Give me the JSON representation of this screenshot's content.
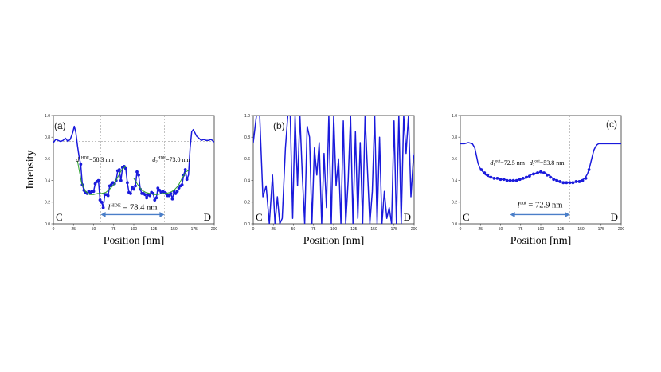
{
  "figure": {
    "ylabel": "Intensity",
    "xlabel": "Position [nm]",
    "panels": [
      {
        "id": "a",
        "label": "(a)",
        "left_label": "C",
        "right_label": "D",
        "annotations": {
          "d1": {
            "pre": "d",
            "sub": "1",
            "sup": "HDE",
            "post": "=58.3 nm"
          },
          "d2": {
            "pre": "d",
            "sub": "2",
            "sup": "HDE",
            "post": "=73.0 nm"
          },
          "l": {
            "pre": "l",
            "sup": "HDE",
            "post": " = 78.4 nm"
          }
        }
      },
      {
        "id": "b",
        "label": "(b)",
        "left_label": "C",
        "right_label": "D"
      },
      {
        "id": "c",
        "label": "(c)",
        "left_label": "C",
        "right_label": "D",
        "annotations": {
          "d1": {
            "pre": "d",
            "sub": "1",
            "sup": "out",
            "post": "=72.5 nm"
          },
          "d2": {
            "pre": "d",
            "sub": "2",
            "sup": "out",
            "post": "=53.8 nm"
          },
          "l": {
            "pre": "l",
            "sup": "out",
            "post": " = 72.9 nm"
          }
        }
      }
    ]
  },
  "chart_data": [
    {
      "type": "line",
      "panel": "(a)",
      "xlabel": "Position [nm]",
      "ylabel": "Intensity",
      "xlim": [
        0,
        200
      ],
      "ylim": [
        0.0,
        1.0
      ],
      "xticks": [
        "0",
        "25",
        "50",
        "75",
        "100",
        "125",
        "150",
        "175",
        "200"
      ],
      "yticks": [
        "0.0",
        "0.2",
        "0.4",
        "0.6",
        "0.8",
        "1.0"
      ],
      "vlines": [
        59,
        138
      ],
      "hline": 0.76,
      "arrow": [
        59,
        138
      ],
      "colors": {
        "line": "#1a1adc",
        "points": "#1a1adc",
        "fit": "#2ca02c",
        "guide": "#9a9a9a",
        "arrow": "#4a7ec8"
      },
      "series": [
        {
          "x": [
            0,
            3,
            6,
            9,
            12,
            15,
            18,
            21,
            24,
            26,
            28,
            30,
            32,
            34,
            36,
            38,
            40,
            42,
            44,
            46,
            48,
            50,
            52,
            54,
            56,
            58,
            60,
            62,
            64,
            66,
            68,
            70,
            72,
            74,
            76,
            78,
            80,
            82,
            84,
            86,
            88,
            90,
            92,
            94,
            96,
            98,
            100,
            102,
            104,
            106,
            108,
            110,
            112,
            114,
            116,
            118,
            120,
            122,
            124,
            126,
            128,
            130,
            132,
            134,
            136,
            138,
            140,
            142,
            144,
            146,
            148,
            150,
            152,
            154,
            156,
            158,
            160,
            162,
            164,
            166,
            168,
            170,
            172,
            174,
            176,
            178,
            181,
            184,
            187,
            190,
            193,
            196,
            199,
            202
          ],
          "y": [
            0.75,
            0.78,
            0.77,
            0.76,
            0.77,
            0.79,
            0.76,
            0.78,
            0.84,
            0.9,
            0.84,
            0.72,
            0.62,
            0.55,
            0.36,
            0.31,
            0.29,
            0.28,
            0.3,
            0.29,
            0.3,
            0.3,
            0.37,
            0.39,
            0.4,
            0.22,
            0.2,
            0.15,
            0.27,
            0.27,
            0.26,
            0.35,
            0.36,
            0.38,
            0.37,
            0.4,
            0.49,
            0.5,
            0.4,
            0.52,
            0.53,
            0.51,
            0.38,
            0.29,
            0.28,
            0.34,
            0.32,
            0.35,
            0.48,
            0.45,
            0.32,
            0.28,
            0.28,
            0.27,
            0.24,
            0.27,
            0.26,
            0.29,
            0.28,
            0.22,
            0.24,
            0.33,
            0.31,
            0.29,
            0.3,
            0.29,
            0.28,
            0.26,
            0.26,
            0.28,
            0.23,
            0.3,
            0.28,
            0.3,
            0.33,
            0.35,
            0.36,
            0.45,
            0.5,
            0.41,
            0.45,
            0.7,
            0.85,
            0.87,
            0.84,
            0.81,
            0.79,
            0.77,
            0.78,
            0.77,
            0.77,
            0.78,
            0.76,
            0.75
          ]
        },
        {
          "name": "fit",
          "x": [
            30,
            35,
            40,
            45,
            50,
            55,
            60,
            65,
            70,
            75,
            80,
            85,
            90
          ],
          "y": [
            0.58,
            0.38,
            0.3,
            0.27,
            0.27,
            0.28,
            0.28,
            0.29,
            0.32,
            0.36,
            0.43,
            0.5,
            0.53
          ]
        },
        {
          "name": "fit",
          "x": [
            100,
            105,
            110,
            115,
            120,
            125,
            130,
            135,
            140,
            145,
            150,
            155,
            160,
            165,
            170
          ],
          "y": [
            0.42,
            0.36,
            0.31,
            0.29,
            0.28,
            0.27,
            0.27,
            0.28,
            0.28,
            0.29,
            0.31,
            0.35,
            0.42,
            0.48,
            0.5
          ]
        }
      ]
    },
    {
      "type": "line",
      "panel": "(b)",
      "xlabel": "Position [nm]",
      "ylabel": "",
      "xlim": [
        0,
        200
      ],
      "ylim": [
        0.0,
        1.0
      ],
      "xticks": [
        "0",
        "25",
        "50",
        "75",
        "100",
        "125",
        "150",
        "175",
        "200"
      ],
      "yticks": [
        "0.0",
        "0.2",
        "0.4",
        "0.6",
        "0.8",
        "1.0"
      ],
      "colors": {
        "line": "#1a1adc"
      },
      "series": [
        {
          "x": [
            0,
            4,
            8,
            12,
            16,
            20,
            24,
            27,
            30,
            33,
            36,
            40,
            43,
            46,
            49,
            52,
            55,
            58,
            61,
            64,
            67,
            70,
            73,
            76,
            79,
            82,
            85,
            88,
            91,
            94,
            97,
            100,
            103,
            106,
            109,
            112,
            115,
            118,
            121,
            124,
            127,
            130,
            133,
            136,
            139,
            142,
            145,
            148,
            151,
            154,
            157,
            160,
            163,
            166,
            169,
            172,
            175,
            178,
            181,
            184,
            187,
            190,
            193,
            196,
            199,
            202
          ],
          "y": [
            0.75,
            1.0,
            1.0,
            0.25,
            0.35,
            0.0,
            0.45,
            0.0,
            0.25,
            0.0,
            0.05,
            0.7,
            1.0,
            1.0,
            0.05,
            1.0,
            0.35,
            1.0,
            0.45,
            0.0,
            0.9,
            0.8,
            0.0,
            0.7,
            0.45,
            0.75,
            0.0,
            0.65,
            0.15,
            1.0,
            0.0,
            1.0,
            0.35,
            0.6,
            0.0,
            0.95,
            0.0,
            0.4,
            1.0,
            0.0,
            0.85,
            0.05,
            0.75,
            0.0,
            1.0,
            0.5,
            0.0,
            0.3,
            1.0,
            0.0,
            0.8,
            0.0,
            0.3,
            0.05,
            0.15,
            0.0,
            0.95,
            0.0,
            1.0,
            0.0,
            1.0,
            0.65,
            1.0,
            0.25,
            0.6,
            0.7
          ]
        }
      ]
    },
    {
      "type": "line",
      "panel": "(c)",
      "xlabel": "Position [nm]",
      "ylabel": "",
      "xlim": [
        0,
        200
      ],
      "ylim": [
        0.0,
        1.0
      ],
      "xticks": [
        "0",
        "25",
        "50",
        "75",
        "100",
        "125",
        "150",
        "175",
        "200"
      ],
      "yticks": [
        "0.0",
        "0.2",
        "0.4",
        "0.6",
        "0.8",
        "1.0"
      ],
      "vlines": [
        62,
        136
      ],
      "arrow": [
        62,
        136
      ],
      "colors": {
        "line": "#1a1adc",
        "points": "#1a1adc",
        "guide": "#9a9a9a",
        "arrow": "#4a7ec8"
      },
      "series": [
        {
          "x": [
            0,
            5,
            10,
            15,
            18,
            20,
            22,
            24,
            26,
            28,
            30,
            34,
            38,
            42,
            46,
            50,
            55,
            60,
            65,
            70,
            75,
            80,
            85,
            90,
            95,
            100,
            105,
            110,
            115,
            120,
            125,
            130,
            135,
            140,
            145,
            150,
            155,
            158,
            160,
            162,
            164,
            166,
            168,
            170,
            172,
            175,
            180,
            185,
            190,
            195,
            200
          ],
          "y": [
            0.74,
            0.74,
            0.75,
            0.74,
            0.7,
            0.63,
            0.56,
            0.52,
            0.5,
            0.48,
            0.46,
            0.44,
            0.43,
            0.42,
            0.42,
            0.41,
            0.41,
            0.4,
            0.4,
            0.4,
            0.41,
            0.42,
            0.44,
            0.46,
            0.47,
            0.48,
            0.47,
            0.45,
            0.42,
            0.4,
            0.39,
            0.38,
            0.38,
            0.38,
            0.39,
            0.4,
            0.42,
            0.46,
            0.5,
            0.56,
            0.62,
            0.68,
            0.71,
            0.73,
            0.74,
            0.74,
            0.74,
            0.74,
            0.74,
            0.74,
            0.74
          ]
        },
        {
          "name": "points",
          "x": [
            26,
            30,
            34,
            38,
            42,
            46,
            50,
            54,
            58,
            62,
            66,
            70,
            74,
            78,
            82,
            86,
            91,
            96,
            100,
            104,
            108,
            112,
            116,
            120,
            124,
            128,
            132,
            136,
            140,
            144,
            148,
            152,
            156,
            160
          ],
          "y": [
            0.5,
            0.47,
            0.45,
            0.43,
            0.42,
            0.42,
            0.41,
            0.41,
            0.4,
            0.4,
            0.4,
            0.4,
            0.41,
            0.42,
            0.43,
            0.44,
            0.46,
            0.47,
            0.48,
            0.47,
            0.45,
            0.43,
            0.41,
            0.4,
            0.39,
            0.38,
            0.38,
            0.38,
            0.38,
            0.39,
            0.39,
            0.4,
            0.42,
            0.5
          ]
        }
      ]
    }
  ]
}
